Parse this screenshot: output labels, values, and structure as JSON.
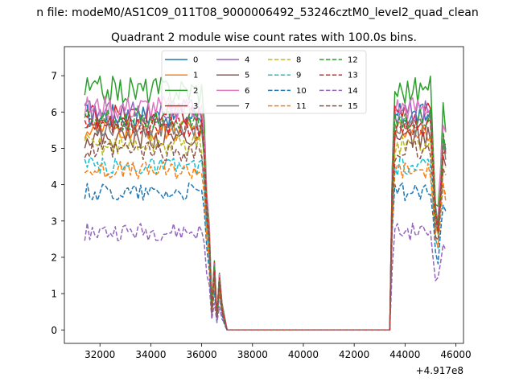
{
  "chart_data": {
    "type": "line",
    "suptitle": "n file: modeM0/AS1C09_011T08_9000006492_53246cztM0_level2_quad_clean",
    "title": "Quadrant 2 module wise count rates with 100.0s bins.",
    "xlabel": "",
    "ylabel": "",
    "x_offset_label": "+4.917e8",
    "xlim": [
      30600,
      46300
    ],
    "ylim": [
      -0.37,
      7.8
    ],
    "x_ticks": [
      32000,
      34000,
      36000,
      38000,
      40000,
      42000,
      44000,
      46000
    ],
    "x_tick_labels": [
      "32000",
      "34000",
      "36000",
      "38000",
      "40000",
      "42000",
      "44000",
      "46000"
    ],
    "y_ticks": [
      0,
      1,
      2,
      3,
      4,
      5,
      6,
      7
    ],
    "y_tick_labels": [
      "0",
      "1",
      "2",
      "3",
      "4",
      "5",
      "6",
      "7"
    ],
    "legend_placement": "upper-center",
    "legend_columns": 4,
    "series": [
      {
        "name": "0",
        "color": "#1f77b4",
        "dash": "solid",
        "level": 5.9,
        "jitter": 0.35
      },
      {
        "name": "1",
        "color": "#ff7f0e",
        "dash": "solid",
        "level": 5.5,
        "jitter": 0.3
      },
      {
        "name": "2",
        "color": "#2ca02c",
        "dash": "solid",
        "level": 6.6,
        "jitter": 0.4
      },
      {
        "name": "3",
        "color": "#d62728",
        "dash": "solid",
        "level": 5.9,
        "jitter": 0.35
      },
      {
        "name": "4",
        "color": "#9467bd",
        "dash": "solid",
        "level": 6.0,
        "jitter": 0.35
      },
      {
        "name": "5",
        "color": "#8c564b",
        "dash": "solid",
        "level": 5.3,
        "jitter": 0.3
      },
      {
        "name": "6",
        "color": "#e377c2",
        "dash": "solid",
        "level": 6.1,
        "jitter": 0.35
      },
      {
        "name": "7",
        "color": "#7f7f7f",
        "dash": "solid",
        "level": 5.6,
        "jitter": 0.3
      },
      {
        "name": "8",
        "color": "#bcbd22",
        "dash": "dashed",
        "level": 5.1,
        "jitter": 0.3
      },
      {
        "name": "9",
        "color": "#17becf",
        "dash": "dashed",
        "level": 4.5,
        "jitter": 0.25
      },
      {
        "name": "10",
        "color": "#1f77b4",
        "dash": "dashed",
        "level": 3.8,
        "jitter": 0.25
      },
      {
        "name": "11",
        "color": "#ff7f0e",
        "dash": "dashed",
        "level": 4.4,
        "jitter": 0.25
      },
      {
        "name": "12",
        "color": "#2ca02c",
        "dash": "dashed",
        "level": 5.8,
        "jitter": 0.3
      },
      {
        "name": "13",
        "color": "#d62728",
        "dash": "dashed",
        "level": 5.6,
        "jitter": 0.3
      },
      {
        "name": "14",
        "color": "#9467bd",
        "dash": "dashed",
        "level": 2.7,
        "jitter": 0.25
      },
      {
        "name": "15",
        "color": "#8c564b",
        "dash": "dashed",
        "level": 4.9,
        "jitter": 0.3
      }
    ],
    "profile": {
      "note_x": "count rate multiplier vs time",
      "x": [
        31400,
        36000,
        36100,
        36200,
        36300,
        36400,
        36500,
        36600,
        36700,
        36800,
        36900,
        37000,
        37100,
        43400,
        43500,
        43600,
        45000,
        45100,
        45200,
        45300,
        45400,
        45500,
        45600
      ],
      "factor": [
        1.0,
        1.0,
        0.85,
        0.6,
        0.45,
        0.1,
        0.3,
        0.05,
        0.25,
        0.1,
        0.05,
        0.0,
        0.0,
        0.0,
        0.7,
        1.0,
        1.0,
        0.8,
        0.55,
        0.5,
        0.7,
        0.9,
        0.85
      ]
    }
  }
}
